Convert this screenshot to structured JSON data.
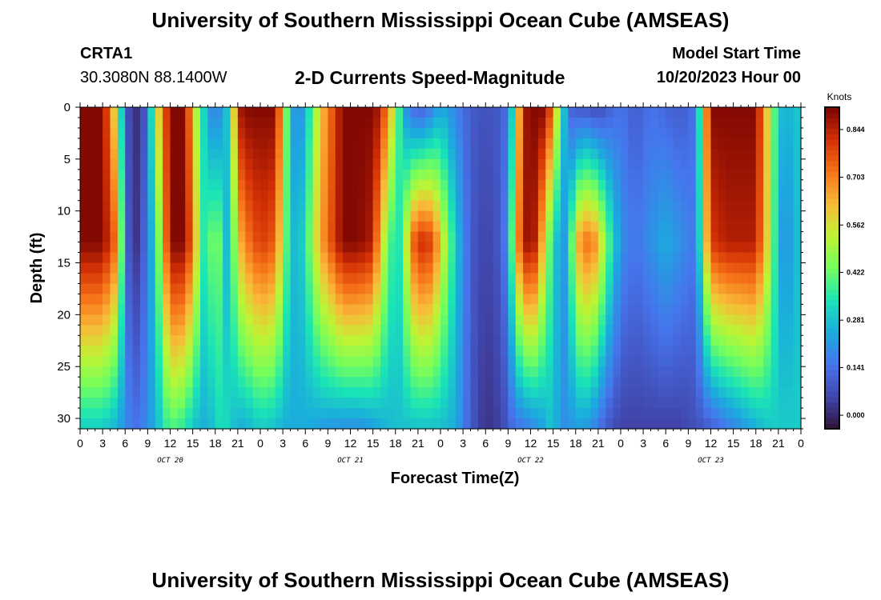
{
  "header": {
    "title": "University of Southern Mississippi Ocean Cube (AMSEAS)",
    "station": "CRTA1",
    "coordinates": "30.3080N  88.1400W",
    "model_start_label": "Model Start Time",
    "model_start_value": "10/20/2023 Hour 00"
  },
  "footer": {
    "title": "University of Southern Mississippi Ocean Cube (AMSEAS)"
  },
  "chart_data": {
    "type": "heatmap",
    "title": "2-D Currents Speed-Magnitude",
    "xlabel": "Forecast Time(Z)",
    "ylabel": "Depth (ft)",
    "x_hours": [
      0,
      96
    ],
    "y_range": [
      0,
      31
    ],
    "y_ticks": [
      0,
      5,
      10,
      15,
      20,
      25,
      30
    ],
    "x_tick_labels": [
      "0",
      "3",
      "6",
      "9",
      "12",
      "15",
      "18",
      "21",
      "0",
      "3",
      "6",
      "9",
      "12",
      "15",
      "18",
      "21",
      "0",
      "3",
      "6",
      "9",
      "12",
      "15",
      "18",
      "21",
      "0",
      "3",
      "6",
      "9",
      "12",
      "15",
      "18",
      "21",
      "0"
    ],
    "day_labels": [
      {
        "hour": 12,
        "label": "OCT 20"
      },
      {
        "hour": 36,
        "label": "OCT 21"
      },
      {
        "hour": 60,
        "label": "OCT 22"
      },
      {
        "hour": 84,
        "label": "OCT 23"
      }
    ],
    "colorbar": {
      "unit": "Knots",
      "min": -0.04,
      "max": 0.91,
      "ticks": [
        "0.844",
        "0.703",
        "0.562",
        "0.422",
        "0.281",
        "0.141",
        "0.000"
      ],
      "tick_values": [
        0.844,
        0.703,
        0.562,
        0.422,
        0.281,
        0.141,
        0.0
      ]
    },
    "units": "knots",
    "speed_by_hour": {
      "hours": [
        0,
        3,
        5,
        6,
        7,
        8,
        9,
        10,
        12,
        14,
        15,
        17,
        18,
        19,
        20,
        21,
        22,
        24,
        26,
        27,
        28,
        29,
        30,
        32,
        35,
        37,
        39,
        40,
        42,
        43,
        44,
        45,
        46,
        47,
        48,
        50,
        52,
        54,
        56,
        57,
        58,
        59,
        60,
        61,
        62,
        63,
        64,
        65,
        66,
        67,
        68,
        69,
        70,
        72,
        74,
        76,
        78,
        80,
        82,
        84,
        86,
        88,
        90,
        92,
        93,
        94,
        95,
        96
      ],
      "surface": [
        0.9,
        0.9,
        0.5,
        0.12,
        0.02,
        0.02,
        0.15,
        0.5,
        0.9,
        0.9,
        0.6,
        0.22,
        0.16,
        0.22,
        0.35,
        0.85,
        0.9,
        0.9,
        0.9,
        0.6,
        0.25,
        0.18,
        0.25,
        0.6,
        0.9,
        0.9,
        0.9,
        0.85,
        0.5,
        0.25,
        0.15,
        0.1,
        0.12,
        0.18,
        0.25,
        0.18,
        0.1,
        0.08,
        0.1,
        0.15,
        0.45,
        0.85,
        0.9,
        0.9,
        0.9,
        0.7,
        0.4,
        0.15,
        0.08,
        0.1,
        0.08,
        0.06,
        0.1,
        0.15,
        0.1,
        0.15,
        0.12,
        0.1,
        0.15,
        0.9,
        0.9,
        0.9,
        0.9,
        0.5,
        0.3,
        0.25,
        0.28,
        0.3
      ],
      "mid": [
        0.9,
        0.9,
        0.7,
        0.15,
        0.03,
        0.03,
        0.2,
        0.3,
        0.9,
        0.9,
        0.7,
        0.25,
        0.6,
        0.25,
        0.3,
        0.6,
        0.7,
        0.8,
        0.75,
        0.5,
        0.3,
        0.25,
        0.35,
        0.65,
        0.9,
        0.9,
        0.85,
        0.6,
        0.3,
        0.4,
        0.7,
        0.82,
        0.82,
        0.78,
        0.6,
        0.3,
        0.1,
        0.05,
        0.1,
        0.2,
        0.6,
        0.85,
        0.9,
        0.8,
        0.5,
        0.35,
        0.2,
        0.25,
        0.6,
        0.72,
        0.72,
        0.65,
        0.45,
        0.2,
        0.15,
        0.2,
        0.25,
        0.2,
        0.15,
        0.8,
        0.85,
        0.85,
        0.85,
        0.5,
        0.25,
        0.2,
        0.25,
        0.3
      ],
      "bottom": [
        0.3,
        0.3,
        0.25,
        0.2,
        0.15,
        0.15,
        0.2,
        0.25,
        0.4,
        0.35,
        0.28,
        0.25,
        0.3,
        0.35,
        0.3,
        0.25,
        0.25,
        0.3,
        0.28,
        0.25,
        0.25,
        0.25,
        0.25,
        0.22,
        0.2,
        0.2,
        0.22,
        0.25,
        0.28,
        0.28,
        0.28,
        0.28,
        0.28,
        0.28,
        0.28,
        0.25,
        0.1,
        0.02,
        0.05,
        0.1,
        0.15,
        0.15,
        0.18,
        0.2,
        0.25,
        0.3,
        0.2,
        0.2,
        0.22,
        0.22,
        0.2,
        0.15,
        0.1,
        0.05,
        0.05,
        0.05,
        0.05,
        0.05,
        0.08,
        0.1,
        0.15,
        0.2,
        0.25,
        0.3,
        0.3,
        0.3,
        0.3,
        0.3
      ]
    }
  }
}
